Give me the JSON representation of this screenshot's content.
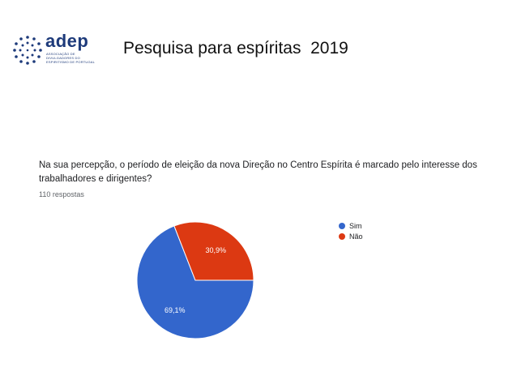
{
  "slide": {
    "title": "Pesquisa para espíritas  2019"
  },
  "logo": {
    "word": "adep",
    "subtitle": "ASSOCIAÇÃO DE DIVULGADORES DO ESPIRITISMO DE PORTUGAL",
    "color": "#1d3a7a"
  },
  "survey": {
    "question": "Na sua percepção, o período de eleição da nova Direção no Centro Espírita é marcado pelo interesse dos trabalhadores e dirigentes?",
    "responses": "110 respostas"
  },
  "chart_data": {
    "type": "pie",
    "categories": [
      "Sim",
      "Não"
    ],
    "values": [
      69.1,
      30.9
    ],
    "labels": [
      "69,1%",
      "30,9%"
    ],
    "colors": [
      "#3366cc",
      "#dc3912"
    ],
    "legend_position": "right"
  }
}
